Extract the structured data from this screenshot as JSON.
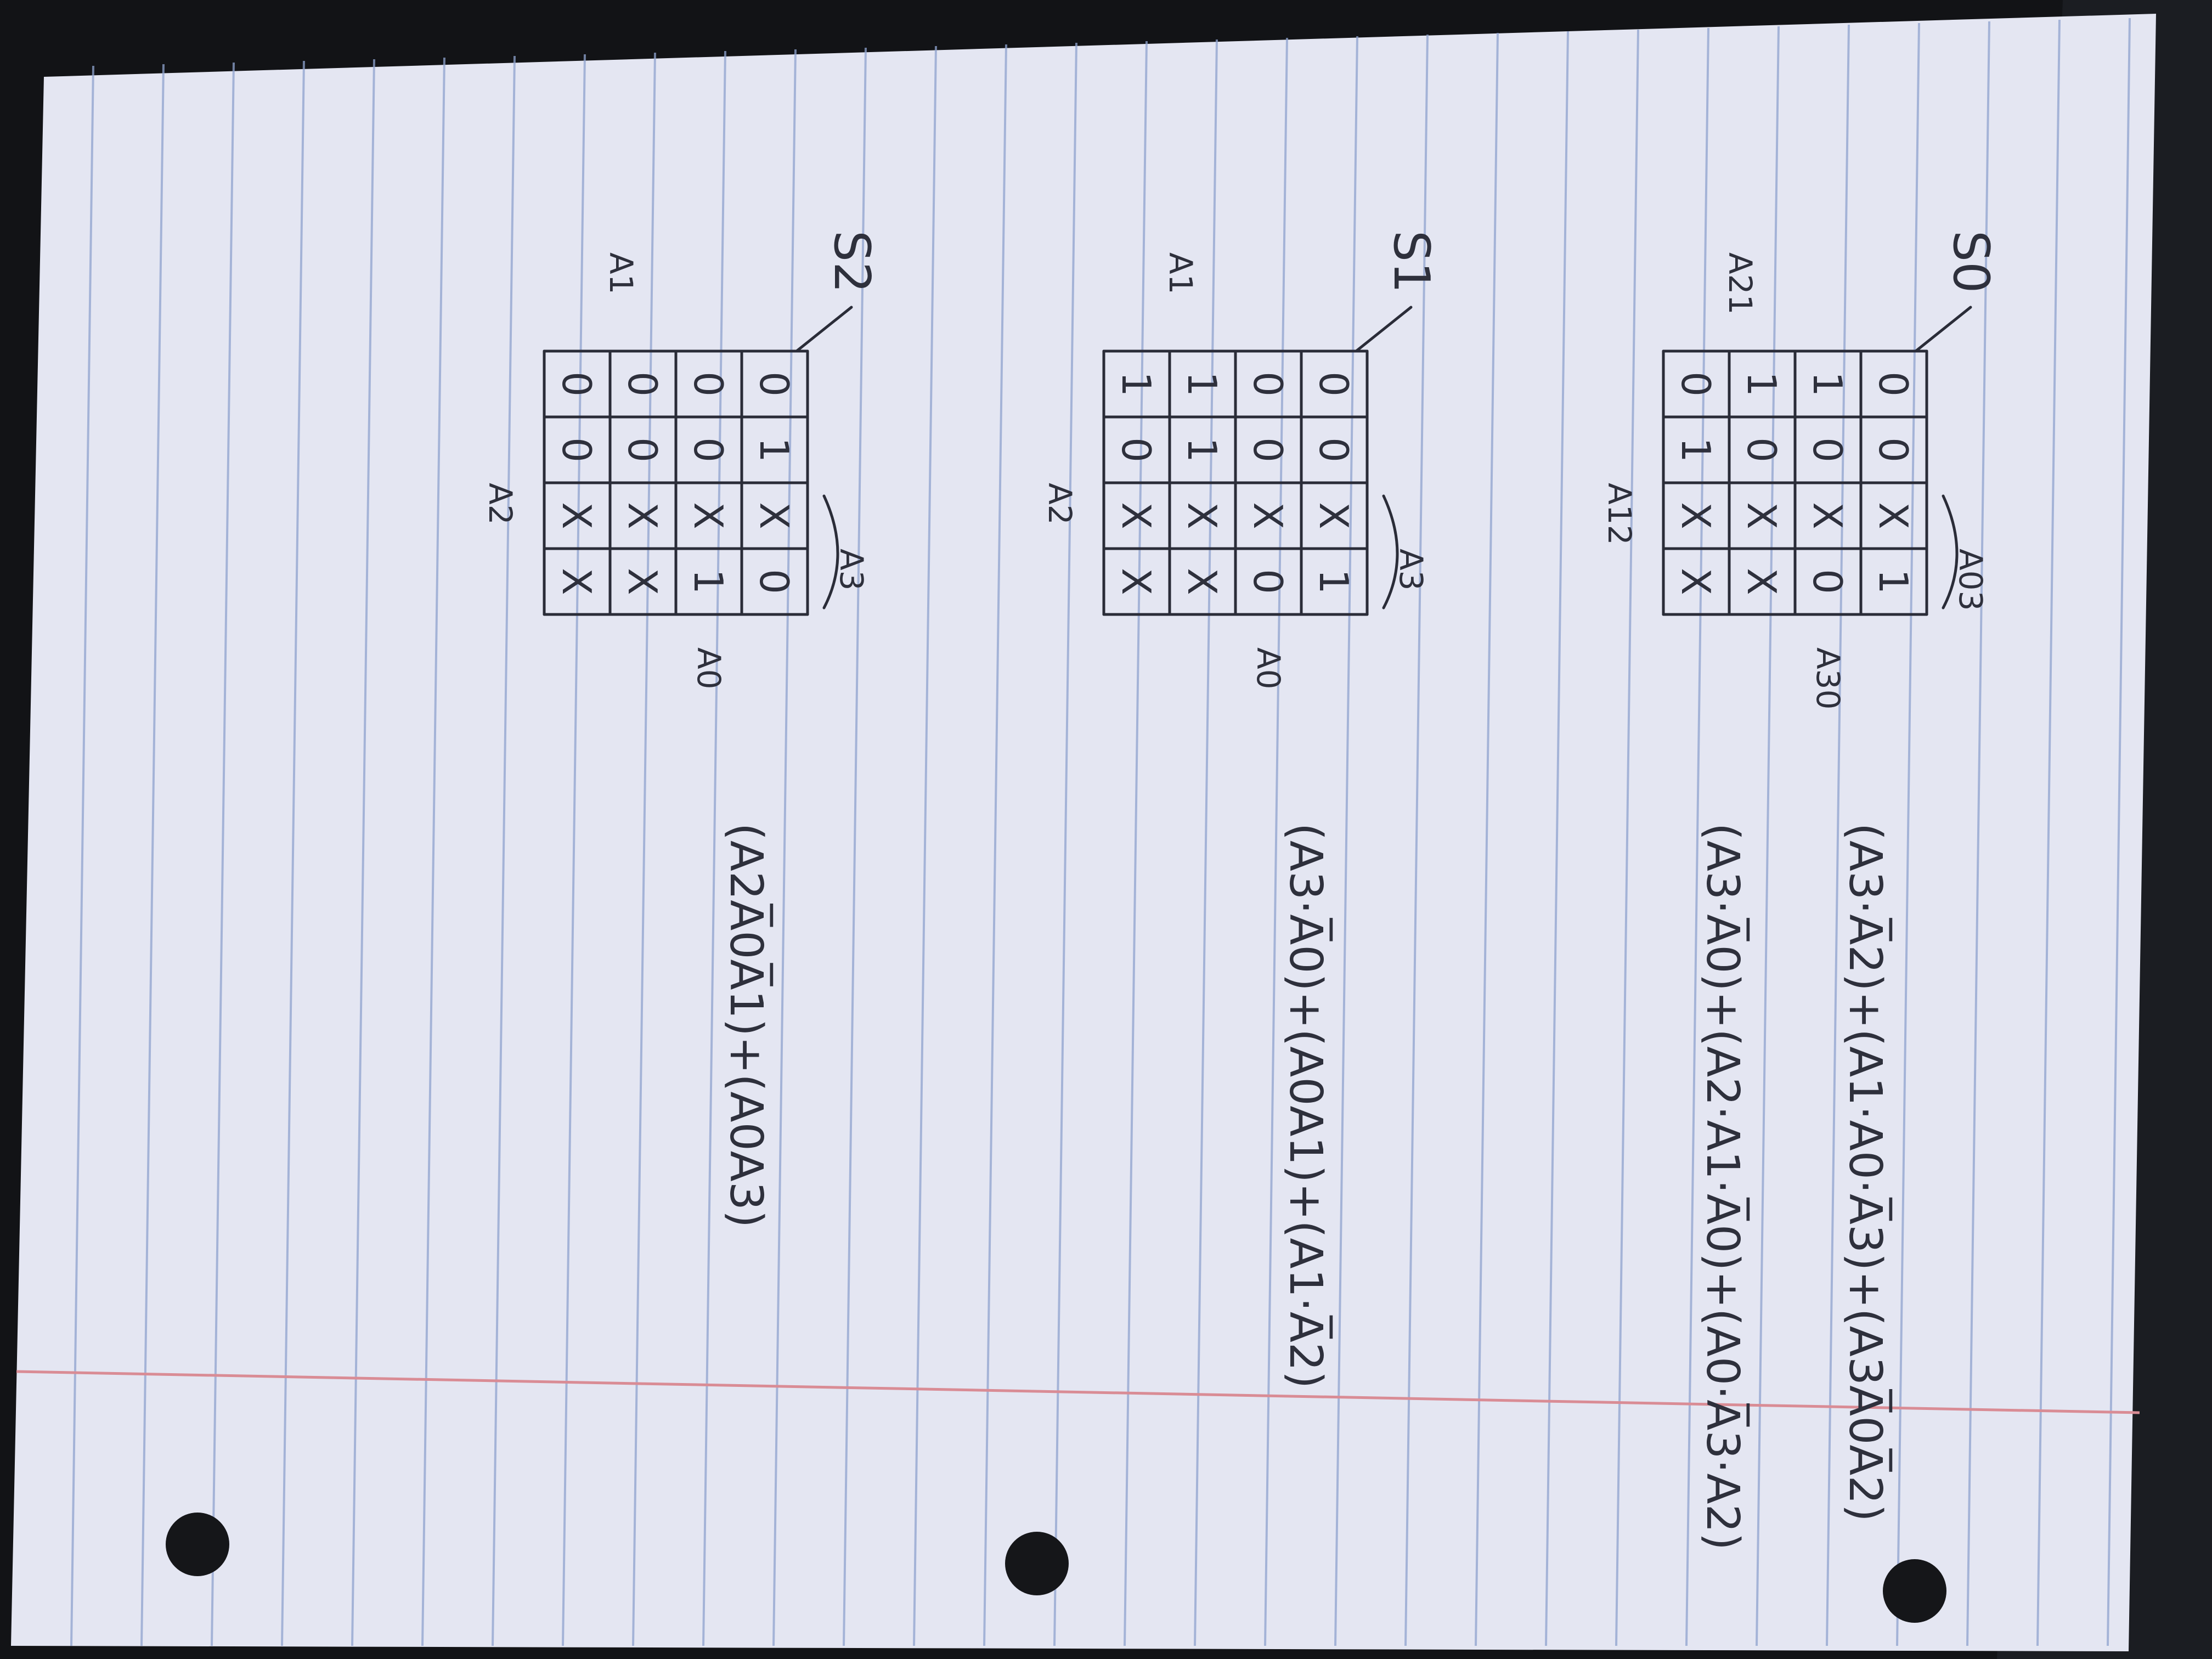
{
  "photo": {
    "subject": "lined-notebook-page",
    "ink_color": "#2a2c38",
    "paper_color": "#e7e9f4",
    "rule_color": "#8fa3cf",
    "margin_color": "#d98c95"
  },
  "maps": [
    {
      "output_label": "S0",
      "col_var_label": "A03",
      "row_var_top_label": "A30",
      "row_var_left_label": "A21",
      "row_var_bottom_label": "A12",
      "grid": [
        [
          "0",
          "0",
          "X",
          "1"
        ],
        [
          "1",
          "0",
          "X",
          "0"
        ],
        [
          "1",
          "0",
          "X",
          "X"
        ],
        [
          "0",
          "1",
          "X",
          "X"
        ]
      ],
      "expressions": [
        "(A3·A̅2)+(A1·A0·A̅3)+(A3A̅0A̅2)",
        "(A3·A̅0)+(A2·A1·A̅0)+(A0·A̅3·A2)"
      ]
    },
    {
      "output_label": "S1",
      "col_var_label": "A3",
      "row_var_top_label": "A0",
      "row_var_left_label": "A1",
      "row_var_bottom_label": "A2",
      "grid": [
        [
          "0",
          "0",
          "X",
          "1"
        ],
        [
          "0",
          "0",
          "X",
          "0"
        ],
        [
          "1",
          "1",
          "X",
          "X"
        ],
        [
          "1",
          "0",
          "X",
          "X"
        ]
      ],
      "expressions": [
        "(A3·A̅0)+(A0A1)+(A1·A̅2)"
      ]
    },
    {
      "output_label": "S2",
      "col_var_label": "A3",
      "row_var_top_label": "A0",
      "row_var_left_label": "A1",
      "row_var_bottom_label": "A2",
      "grid": [
        [
          "0",
          "1",
          "X",
          "0"
        ],
        [
          "0",
          "0",
          "X",
          "1"
        ],
        [
          "0",
          "0",
          "X",
          "X"
        ],
        [
          "0",
          "0",
          "X",
          "X"
        ]
      ],
      "expressions": [
        "(A2A̅0A̅1)+(A0A3)"
      ]
    }
  ]
}
